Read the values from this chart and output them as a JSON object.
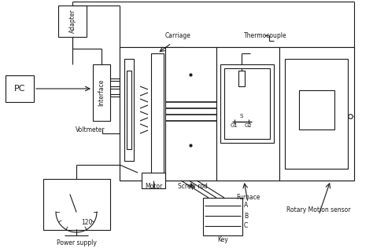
{
  "bg_color": "#ffffff",
  "line_color": "#1a1a1a",
  "fig_width": 4.74,
  "fig_height": 3.16,
  "dpi": 100,
  "labels": {
    "adapter": "Adapter",
    "interface": "Interface",
    "pc": "PC",
    "voltmeter": "Voltmeter",
    "motor": "Motor",
    "screw_rod": "Screw rod",
    "furnace": "Furnace",
    "carriage": "Carriage",
    "thermocouple": "Thermocouple",
    "rotary": "Rotary Motion sensor",
    "power_supply": "Power supply",
    "key": "Key",
    "g1": "G1",
    "g2": "G2",
    "s": "S",
    "a": "A",
    "b": "B",
    "c": "C",
    "val120": "120"
  }
}
